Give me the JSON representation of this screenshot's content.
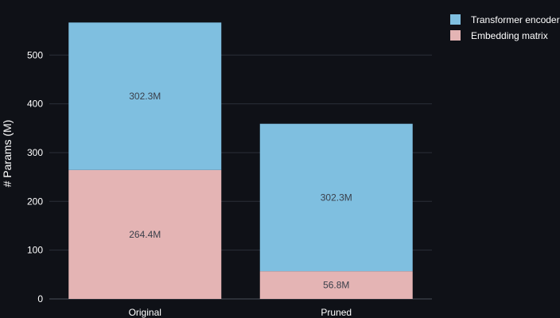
{
  "chart_data": {
    "type": "bar",
    "stacked": true,
    "categories": [
      "Original",
      "Pruned"
    ],
    "series": [
      {
        "name": "Embedding matrix",
        "values": [
          264.4,
          56.8
        ],
        "labels": [
          "264.4M",
          "56.8M"
        ],
        "color": "#e4b4b4"
      },
      {
        "name": "Transformer encoder",
        "values": [
          302.3,
          302.3
        ],
        "labels": [
          "302.3M",
          "302.3M"
        ],
        "color": "#7fbfe0"
      }
    ],
    "title": "",
    "xlabel": "",
    "ylabel": "# Params (M)",
    "ylim": [
      0,
      567
    ],
    "yticks": [
      0,
      100,
      200,
      300,
      400,
      500
    ],
    "grid": true,
    "legend_position": "top-right",
    "legend_order": [
      "Transformer encoder",
      "Embedding matrix"
    ]
  }
}
